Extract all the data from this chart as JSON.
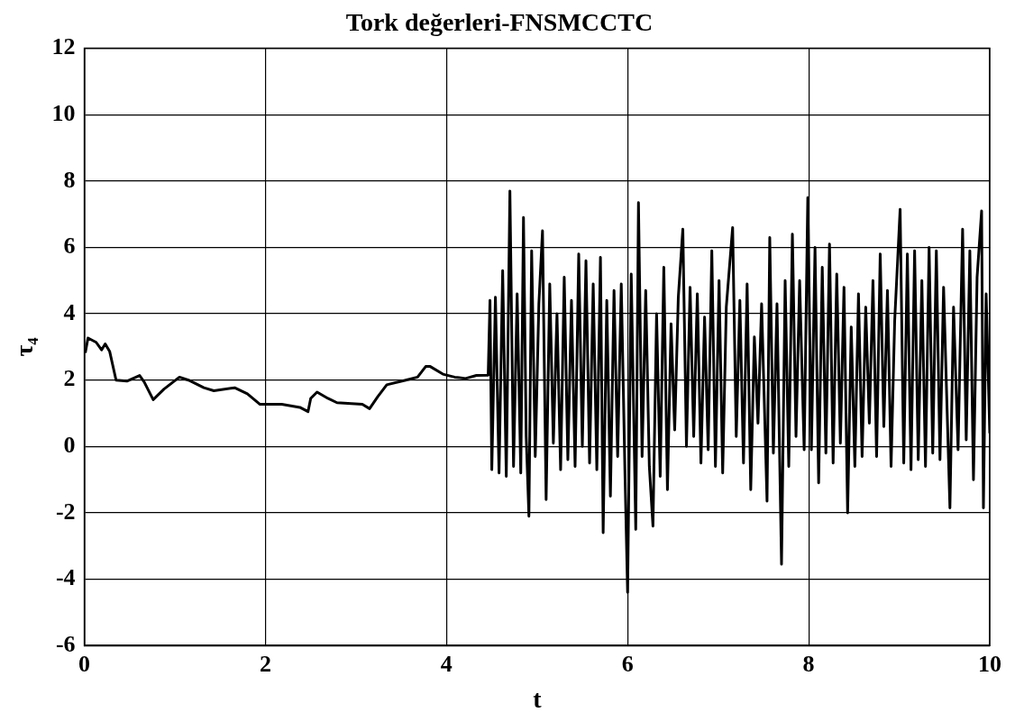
{
  "chart_data": {
    "type": "line",
    "title": "Tork değerleri-FNSMCCTC",
    "xlabel": "t",
    "ylabel": "τ₄",
    "xlim": [
      0,
      10
    ],
    "xticks": [
      0,
      2,
      4,
      6,
      8,
      10
    ],
    "ylim": [
      -6,
      12
    ],
    "yticks": [
      -6,
      -4,
      -2,
      0,
      2,
      4,
      6,
      8,
      10,
      12
    ],
    "grid": true,
    "legend": false,
    "marker": "none",
    "line_style": "solid",
    "series": [
      {
        "color": "#000000",
        "x": [
          0.01,
          0.04,
          0.13,
          0.19,
          0.23,
          0.28,
          0.35,
          0.47,
          0.61,
          0.66,
          0.76,
          0.88,
          1.05,
          1.15,
          1.32,
          1.43,
          1.66,
          1.8,
          1.94,
          2.18,
          2.38,
          2.47,
          2.5,
          2.57,
          2.69,
          2.79,
          3.07,
          3.15,
          3.24,
          3.34,
          3.55,
          3.68,
          3.77,
          3.82,
          3.96,
          4.09,
          4.21,
          4.33,
          4.46,
          4.48,
          4.5,
          4.54,
          4.58,
          4.62,
          4.66,
          4.7,
          4.74,
          4.78,
          4.82,
          4.85,
          4.88,
          4.91,
          4.94,
          4.98,
          5.02,
          5.06,
          5.1,
          5.14,
          5.18,
          5.22,
          5.26,
          5.3,
          5.34,
          5.38,
          5.42,
          5.46,
          5.5,
          5.54,
          5.58,
          5.62,
          5.66,
          5.7,
          5.73,
          5.77,
          5.81,
          5.85,
          5.89,
          5.93,
          5.97,
          6.0,
          6.04,
          6.09,
          6.12,
          6.16,
          6.2,
          6.24,
          6.28,
          6.32,
          6.36,
          6.4,
          6.44,
          6.48,
          6.52,
          6.56,
          6.61,
          6.65,
          6.69,
          6.73,
          6.77,
          6.81,
          6.85,
          6.89,
          6.93,
          6.97,
          7.01,
          7.05,
          7.09,
          7.16,
          7.2,
          7.24,
          7.28,
          7.32,
          7.36,
          7.4,
          7.44,
          7.48,
          7.54,
          7.57,
          7.61,
          7.65,
          7.7,
          7.74,
          7.78,
          7.82,
          7.86,
          7.9,
          7.95,
          7.99,
          8.03,
          8.07,
          8.11,
          8.15,
          8.19,
          8.23,
          8.27,
          8.31,
          8.35,
          8.39,
          8.43,
          8.47,
          8.51,
          8.55,
          8.59,
          8.63,
          8.67,
          8.71,
          8.75,
          8.79,
          8.83,
          8.87,
          8.91,
          8.95,
          9.01,
          9.05,
          9.09,
          9.13,
          9.17,
          9.21,
          9.25,
          9.29,
          9.33,
          9.37,
          9.41,
          9.45,
          9.49,
          9.56,
          9.6,
          9.65,
          9.7,
          9.74,
          9.78,
          9.82,
          9.86,
          9.91,
          9.93,
          9.96,
          10.0
        ],
        "values": [
          2.82,
          3.27,
          3.14,
          2.91,
          3.09,
          2.86,
          2.0,
          1.97,
          2.14,
          1.95,
          1.41,
          1.73,
          2.09,
          2.0,
          1.77,
          1.68,
          1.77,
          1.59,
          1.27,
          1.27,
          1.18,
          1.05,
          1.45,
          1.64,
          1.45,
          1.32,
          1.27,
          1.14,
          1.5,
          1.86,
          2.0,
          2.09,
          2.41,
          2.41,
          2.18,
          2.09,
          2.05,
          2.14,
          2.15,
          4.4,
          -0.7,
          4.5,
          -0.8,
          5.3,
          -0.9,
          7.7,
          -0.6,
          4.6,
          -0.8,
          6.9,
          0.3,
          -2.1,
          5.9,
          -0.3,
          4.3,
          6.5,
          -1.6,
          4.9,
          0.1,
          4.0,
          -0.7,
          5.1,
          -0.4,
          4.4,
          -0.6,
          5.8,
          0.0,
          5.6,
          -0.5,
          4.9,
          -0.7,
          5.7,
          -2.6,
          4.4,
          -1.5,
          4.7,
          -0.3,
          4.9,
          -0.7,
          -4.4,
          5.2,
          -2.5,
          7.35,
          -0.3,
          4.7,
          -0.6,
          -2.4,
          4.0,
          -0.9,
          5.4,
          -1.3,
          3.7,
          0.5,
          4.5,
          6.55,
          0.0,
          4.8,
          0.3,
          4.6,
          -0.5,
          3.9,
          -0.1,
          5.9,
          -0.6,
          5.0,
          -0.8,
          4.2,
          6.6,
          0.3,
          4.4,
          -0.5,
          4.9,
          -1.3,
          3.3,
          0.7,
          4.3,
          -1.65,
          6.3,
          -0.2,
          4.3,
          -3.55,
          5.0,
          -0.6,
          6.4,
          0.3,
          5.0,
          -0.1,
          7.5,
          -0.1,
          6.0,
          -1.1,
          5.4,
          -0.2,
          6.1,
          -0.5,
          5.2,
          0.1,
          4.8,
          -2.0,
          3.6,
          -0.6,
          4.6,
          -0.3,
          4.2,
          0.7,
          5.0,
          -0.3,
          5.8,
          0.6,
          4.7,
          -0.6,
          3.8,
          7.15,
          -0.5,
          5.8,
          -0.7,
          5.9,
          -0.4,
          5.0,
          -0.6,
          6.0,
          -0.2,
          5.9,
          -0.4,
          4.8,
          -1.85,
          4.2,
          -0.1,
          6.55,
          0.2,
          5.9,
          -1.0,
          5.1,
          7.1,
          -1.85,
          4.6,
          0.4
        ]
      }
    ]
  }
}
